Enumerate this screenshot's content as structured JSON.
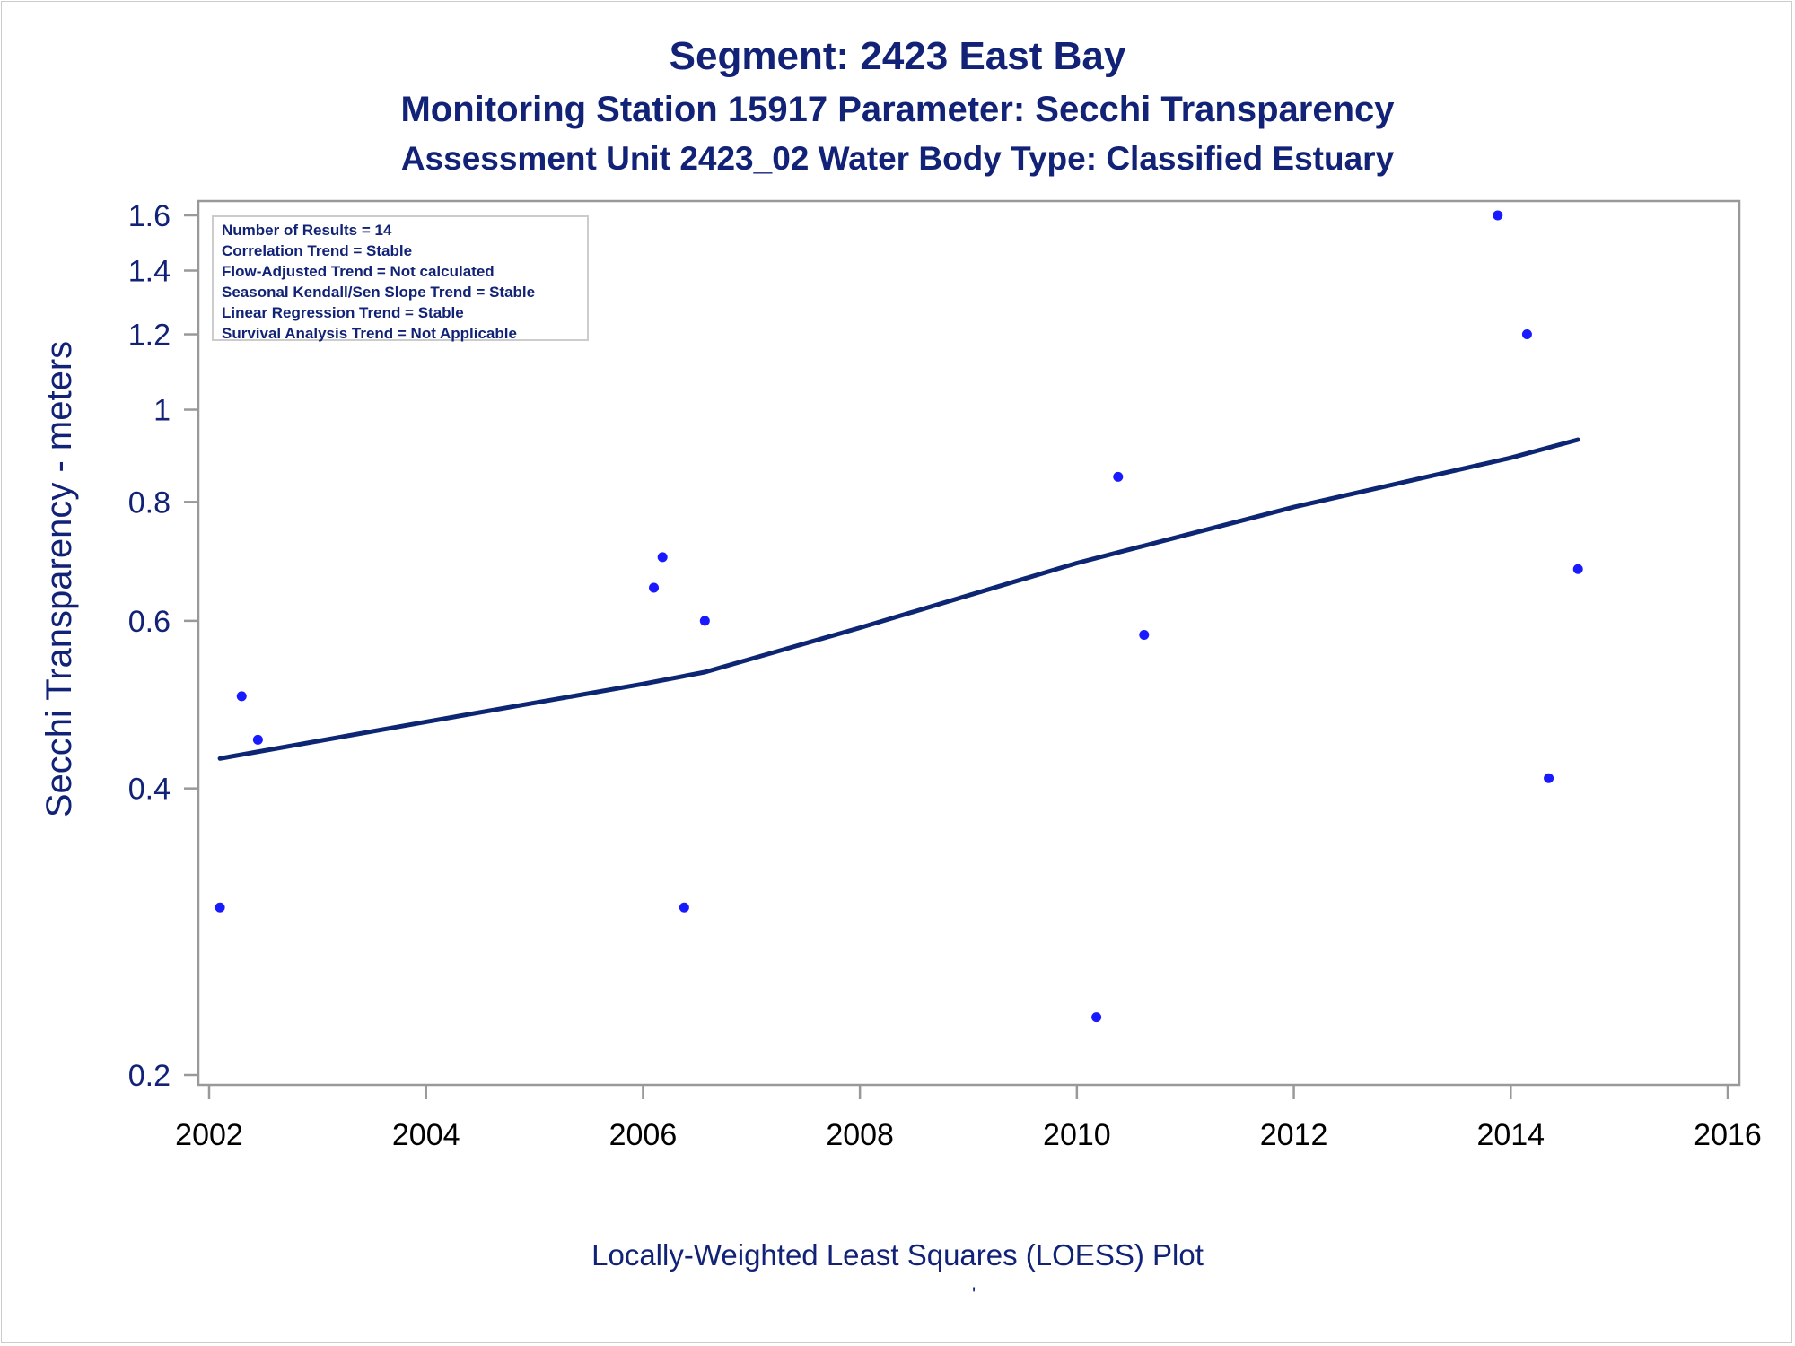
{
  "header": {
    "title": "Segment: 2423  East Bay",
    "subtitle1": "Monitoring Station 15917 Parameter: Secchi Transparency",
    "subtitle2": "Assessment Unit 2423_02   Water Body Type: Classified Estuary"
  },
  "stats": [
    "Number of Results = 14",
    "Correlation Trend = Stable",
    "Flow-Adjusted Trend = Not calculated",
    "Seasonal Kendall/Sen Slope Trend = Stable",
    "Linear Regression Trend = Stable",
    "Survival Analysis Trend = Not Applicable"
  ],
  "footnote": "Locally-Weighted Least Squares (LOESS) Plot",
  "footnote_mark": "'",
  "colors": {
    "text": "#112277",
    "points": "#1a1aff",
    "line": "#0d2673",
    "axis": "#999999"
  },
  "chart_data": {
    "type": "scatter",
    "ylabel": "Secchi Transparency - meters",
    "xlabel": "",
    "y_scale": "log",
    "xlim": [
      2002.0,
      2016.0
    ],
    "ylim": [
      0.2,
      1.6
    ],
    "x_ticks": [
      2002,
      2004,
      2006,
      2008,
      2010,
      2012,
      2014,
      2016
    ],
    "x_tick_labels": [
      "2002",
      "2004",
      "2006",
      "2008",
      "2010",
      "2012",
      "2014",
      "2016"
    ],
    "y_ticks": [
      0.2,
      0.4,
      0.6,
      0.8,
      1.0,
      1.2,
      1.4,
      1.6
    ],
    "y_tick_labels": [
      "0.2",
      "0.4",
      "0.6",
      "0.8",
      "1",
      "1.2",
      "1.4",
      "1.6"
    ],
    "grid": false,
    "series": [
      {
        "type": "scatter",
        "points": [
          {
            "x": 2002.1,
            "y": 0.3
          },
          {
            "x": 2002.3,
            "y": 0.5
          },
          {
            "x": 2002.45,
            "y": 0.45
          },
          {
            "x": 2006.1,
            "y": 0.65
          },
          {
            "x": 2006.18,
            "y": 0.7
          },
          {
            "x": 2006.38,
            "y": 0.3
          },
          {
            "x": 2006.57,
            "y": 0.6
          },
          {
            "x": 2010.18,
            "y": 0.23
          },
          {
            "x": 2010.38,
            "y": 0.85
          },
          {
            "x": 2010.62,
            "y": 0.58
          },
          {
            "x": 2013.88,
            "y": 1.6
          },
          {
            "x": 2014.15,
            "y": 1.2
          },
          {
            "x": 2014.35,
            "y": 0.41
          },
          {
            "x": 2014.62,
            "y": 0.68
          }
        ]
      },
      {
        "type": "line",
        "points": [
          {
            "x": 2002.1,
            "y": 0.43
          },
          {
            "x": 2004.0,
            "y": 0.47
          },
          {
            "x": 2006.0,
            "y": 0.515
          },
          {
            "x": 2006.57,
            "y": 0.53
          },
          {
            "x": 2008.0,
            "y": 0.59
          },
          {
            "x": 2010.0,
            "y": 0.69
          },
          {
            "x": 2012.0,
            "y": 0.79
          },
          {
            "x": 2014.0,
            "y": 0.89
          },
          {
            "x": 2014.62,
            "y": 0.93
          }
        ]
      }
    ]
  }
}
